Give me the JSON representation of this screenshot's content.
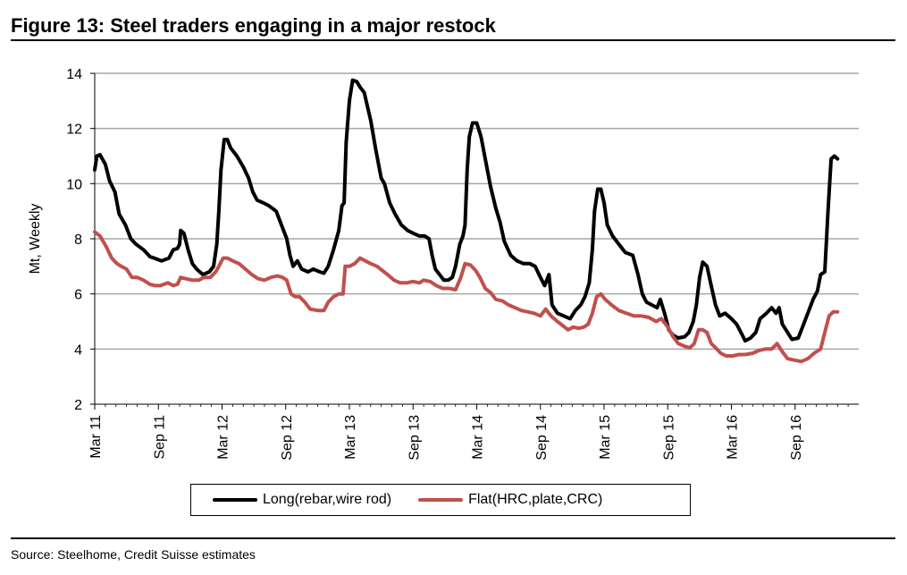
{
  "figure": {
    "title": "Figure 13: Steel traders engaging in a major restock",
    "source": "Source: Steelhome, Credit Suisse estimates"
  },
  "chart_data": {
    "type": "line",
    "title": "Figure 13: Steel traders engaging in a major restock",
    "xlabel": "",
    "ylabel": "Mt, Weekly",
    "ylim": [
      2,
      14
    ],
    "yticks": [
      2,
      4,
      6,
      8,
      10,
      12,
      14
    ],
    "grid": true,
    "legend_position": "bottom",
    "x_tick_labels": [
      "Mar 11",
      "Sep 11",
      "Mar 12",
      "Sep 12",
      "Mar 13",
      "Sep 13",
      "Mar 14",
      "Sep 14",
      "Mar 15",
      "Sep 15",
      "Mar 16",
      "Sep 16"
    ],
    "x_unit": "months since Mar 11",
    "x_range": [
      0,
      72
    ],
    "series": [
      {
        "name": "Long(rebar,wire rod)",
        "color": "#000000",
        "points": [
          [
            0,
            10.5
          ],
          [
            0.2,
            11.0
          ],
          [
            0.5,
            11.05
          ],
          [
            1,
            10.7
          ],
          [
            1.4,
            10.1
          ],
          [
            1.9,
            9.7
          ],
          [
            2.3,
            8.9
          ],
          [
            2.9,
            8.5
          ],
          [
            3.4,
            8.0
          ],
          [
            3.9,
            7.8
          ],
          [
            4.6,
            7.6
          ],
          [
            5.2,
            7.35
          ],
          [
            5.6,
            7.3
          ],
          [
            6.3,
            7.2
          ],
          [
            7.0,
            7.3
          ],
          [
            7.4,
            7.6
          ],
          [
            7.8,
            7.65
          ],
          [
            8.0,
            7.8
          ],
          [
            8.1,
            8.3
          ],
          [
            8.4,
            8.2
          ],
          [
            8.8,
            7.6
          ],
          [
            9.2,
            7.1
          ],
          [
            9.6,
            6.9
          ],
          [
            10.2,
            6.7
          ],
          [
            10.8,
            6.8
          ],
          [
            11.2,
            7.0
          ],
          [
            11.5,
            7.8
          ],
          [
            11.7,
            9.0
          ],
          [
            11.9,
            10.5
          ],
          [
            12.2,
            11.6
          ],
          [
            12.5,
            11.6
          ],
          [
            12.8,
            11.3
          ],
          [
            13.4,
            11.0
          ],
          [
            14.0,
            10.6
          ],
          [
            14.5,
            10.2
          ],
          [
            14.9,
            9.7
          ],
          [
            15.3,
            9.4
          ],
          [
            15.9,
            9.3
          ],
          [
            16.4,
            9.2
          ],
          [
            17.1,
            9.0
          ],
          [
            17.6,
            8.5
          ],
          [
            18.1,
            8.0
          ],
          [
            18.4,
            7.4
          ],
          [
            18.7,
            7.0
          ],
          [
            19.1,
            7.2
          ],
          [
            19.5,
            6.9
          ],
          [
            20.1,
            6.8
          ],
          [
            20.6,
            6.9
          ],
          [
            21.2,
            6.8
          ],
          [
            21.6,
            6.75
          ],
          [
            22.0,
            7.0
          ],
          [
            22.5,
            7.6
          ],
          [
            23.0,
            8.3
          ],
          [
            23.3,
            9.2
          ],
          [
            23.5,
            9.3
          ],
          [
            23.7,
            11.5
          ],
          [
            24.0,
            13.0
          ],
          [
            24.3,
            13.75
          ],
          [
            24.7,
            13.7
          ],
          [
            25.0,
            13.5
          ],
          [
            25.4,
            13.3
          ],
          [
            26.0,
            12.3
          ],
          [
            26.5,
            11.2
          ],
          [
            27.0,
            10.2
          ],
          [
            27.3,
            10.0
          ],
          [
            27.8,
            9.3
          ],
          [
            28.3,
            8.9
          ],
          [
            28.9,
            8.5
          ],
          [
            29.5,
            8.3
          ],
          [
            30.0,
            8.2
          ],
          [
            30.6,
            8.1
          ],
          [
            31.1,
            8.1
          ],
          [
            31.5,
            8.0
          ],
          [
            31.8,
            7.4
          ],
          [
            32.1,
            6.9
          ],
          [
            32.5,
            6.7
          ],
          [
            32.9,
            6.5
          ],
          [
            33.3,
            6.5
          ],
          [
            33.7,
            6.6
          ],
          [
            34.0,
            7.0
          ],
          [
            34.4,
            7.8
          ],
          [
            34.7,
            8.1
          ],
          [
            34.9,
            8.5
          ],
          [
            35.1,
            10.5
          ],
          [
            35.3,
            11.7
          ],
          [
            35.6,
            12.2
          ],
          [
            36.0,
            12.2
          ],
          [
            36.4,
            11.7
          ],
          [
            36.9,
            10.7
          ],
          [
            37.3,
            9.9
          ],
          [
            37.8,
            9.1
          ],
          [
            38.2,
            8.6
          ],
          [
            38.6,
            7.9
          ],
          [
            39.2,
            7.4
          ],
          [
            39.8,
            7.2
          ],
          [
            40.4,
            7.1
          ],
          [
            41.0,
            7.1
          ],
          [
            41.5,
            7.0
          ],
          [
            42.0,
            6.6
          ],
          [
            42.4,
            6.3
          ],
          [
            42.8,
            6.7
          ],
          [
            43.1,
            5.6
          ],
          [
            43.6,
            5.3
          ],
          [
            44.2,
            5.2
          ],
          [
            44.8,
            5.1
          ],
          [
            45.3,
            5.4
          ],
          [
            45.8,
            5.6
          ],
          [
            46.2,
            5.9
          ],
          [
            46.6,
            6.4
          ],
          [
            46.9,
            7.6
          ],
          [
            47.1,
            9.0
          ],
          [
            47.4,
            9.8
          ],
          [
            47.7,
            9.8
          ],
          [
            48.0,
            9.3
          ],
          [
            48.3,
            8.5
          ],
          [
            48.8,
            8.1
          ],
          [
            49.4,
            7.8
          ],
          [
            50.0,
            7.5
          ],
          [
            50.7,
            7.4
          ],
          [
            51.2,
            6.7
          ],
          [
            51.6,
            6.0
          ],
          [
            52.0,
            5.7
          ],
          [
            52.5,
            5.6
          ],
          [
            53.0,
            5.5
          ],
          [
            53.3,
            5.8
          ],
          [
            53.7,
            5.3
          ],
          [
            54.1,
            4.7
          ],
          [
            54.5,
            4.5
          ],
          [
            55.0,
            4.4
          ],
          [
            55.6,
            4.45
          ],
          [
            56.0,
            4.6
          ],
          [
            56.4,
            5.0
          ],
          [
            56.7,
            5.6
          ],
          [
            57.0,
            6.6
          ],
          [
            57.3,
            7.15
          ],
          [
            57.7,
            7.0
          ],
          [
            58.1,
            6.3
          ],
          [
            58.5,
            5.6
          ],
          [
            58.9,
            5.2
          ],
          [
            59.4,
            5.3
          ],
          [
            60.0,
            5.1
          ],
          [
            60.5,
            4.9
          ],
          [
            60.9,
            4.6
          ],
          [
            61.3,
            4.3
          ],
          [
            61.8,
            4.4
          ],
          [
            62.3,
            4.6
          ],
          [
            62.7,
            5.1
          ],
          [
            63.3,
            5.3
          ],
          [
            63.8,
            5.5
          ],
          [
            64.2,
            5.3
          ],
          [
            64.5,
            5.5
          ],
          [
            64.8,
            4.9
          ],
          [
            65.3,
            4.6
          ],
          [
            65.7,
            4.35
          ],
          [
            66.3,
            4.4
          ],
          [
            66.7,
            4.8
          ],
          [
            67.2,
            5.3
          ],
          [
            67.7,
            5.8
          ],
          [
            68.1,
            6.1
          ],
          [
            68.4,
            6.7
          ],
          [
            68.8,
            6.8
          ],
          [
            69.1,
            9.0
          ],
          [
            69.4,
            10.9
          ],
          [
            69.7,
            11.0
          ],
          [
            70.0,
            10.9
          ]
        ]
      },
      {
        "name": "Flat(HRC,plate,CRC)",
        "color": "#c0504d",
        "points": [
          [
            0,
            8.25
          ],
          [
            0.5,
            8.1
          ],
          [
            1.1,
            7.7
          ],
          [
            1.6,
            7.3
          ],
          [
            2.1,
            7.1
          ],
          [
            2.5,
            7.0
          ],
          [
            3.0,
            6.9
          ],
          [
            3.5,
            6.6
          ],
          [
            4.0,
            6.6
          ],
          [
            4.6,
            6.5
          ],
          [
            5.2,
            6.35
          ],
          [
            5.7,
            6.3
          ],
          [
            6.2,
            6.3
          ],
          [
            6.9,
            6.4
          ],
          [
            7.4,
            6.3
          ],
          [
            7.8,
            6.35
          ],
          [
            8.1,
            6.6
          ],
          [
            8.6,
            6.55
          ],
          [
            9.2,
            6.5
          ],
          [
            9.8,
            6.5
          ],
          [
            10.3,
            6.6
          ],
          [
            10.9,
            6.6
          ],
          [
            11.4,
            6.8
          ],
          [
            11.7,
            7.0
          ],
          [
            12.1,
            7.3
          ],
          [
            12.5,
            7.3
          ],
          [
            13.0,
            7.2
          ],
          [
            13.6,
            7.1
          ],
          [
            14.2,
            6.9
          ],
          [
            14.8,
            6.7
          ],
          [
            15.4,
            6.55
          ],
          [
            16.0,
            6.5
          ],
          [
            16.6,
            6.6
          ],
          [
            17.2,
            6.65
          ],
          [
            17.7,
            6.6
          ],
          [
            18.1,
            6.5
          ],
          [
            18.5,
            6.0
          ],
          [
            18.9,
            5.9
          ],
          [
            19.3,
            5.9
          ],
          [
            19.8,
            5.7
          ],
          [
            20.3,
            5.45
          ],
          [
            21.0,
            5.4
          ],
          [
            21.6,
            5.4
          ],
          [
            22.0,
            5.7
          ],
          [
            22.5,
            5.9
          ],
          [
            23.0,
            6.0
          ],
          [
            23.4,
            6.0
          ],
          [
            23.6,
            7.0
          ],
          [
            24.0,
            7.0
          ],
          [
            24.5,
            7.1
          ],
          [
            25.0,
            7.3
          ],
          [
            25.5,
            7.2
          ],
          [
            26.0,
            7.1
          ],
          [
            26.6,
            7.0
          ],
          [
            27.1,
            6.85
          ],
          [
            27.6,
            6.7
          ],
          [
            28.2,
            6.5
          ],
          [
            28.8,
            6.4
          ],
          [
            29.4,
            6.4
          ],
          [
            30.0,
            6.45
          ],
          [
            30.6,
            6.4
          ],
          [
            31.0,
            6.5
          ],
          [
            31.6,
            6.45
          ],
          [
            32.2,
            6.3
          ],
          [
            32.8,
            6.2
          ],
          [
            33.4,
            6.2
          ],
          [
            34.0,
            6.15
          ],
          [
            34.5,
            6.6
          ],
          [
            34.9,
            7.1
          ],
          [
            35.4,
            7.05
          ],
          [
            35.9,
            6.85
          ],
          [
            36.3,
            6.6
          ],
          [
            36.8,
            6.2
          ],
          [
            37.3,
            6.05
          ],
          [
            37.8,
            5.8
          ],
          [
            38.4,
            5.75
          ],
          [
            39.0,
            5.6
          ],
          [
            39.6,
            5.5
          ],
          [
            40.2,
            5.4
          ],
          [
            40.8,
            5.35
          ],
          [
            41.4,
            5.3
          ],
          [
            42.0,
            5.2
          ],
          [
            42.5,
            5.45
          ],
          [
            43.0,
            5.2
          ],
          [
            43.6,
            5.0
          ],
          [
            44.1,
            4.85
          ],
          [
            44.6,
            4.7
          ],
          [
            45.1,
            4.8
          ],
          [
            45.6,
            4.75
          ],
          [
            46.1,
            4.8
          ],
          [
            46.5,
            4.9
          ],
          [
            46.9,
            5.3
          ],
          [
            47.3,
            5.9
          ],
          [
            47.7,
            6.0
          ],
          [
            48.1,
            5.8
          ],
          [
            48.7,
            5.6
          ],
          [
            49.4,
            5.4
          ],
          [
            50.1,
            5.3
          ],
          [
            50.8,
            5.2
          ],
          [
            51.5,
            5.2
          ],
          [
            52.2,
            5.15
          ],
          [
            52.9,
            5.0
          ],
          [
            53.4,
            5.1
          ],
          [
            54.0,
            4.8
          ],
          [
            54.5,
            4.45
          ],
          [
            55.0,
            4.2
          ],
          [
            55.6,
            4.1
          ],
          [
            56.1,
            4.05
          ],
          [
            56.5,
            4.2
          ],
          [
            56.9,
            4.7
          ],
          [
            57.3,
            4.7
          ],
          [
            57.7,
            4.6
          ],
          [
            58.1,
            4.2
          ],
          [
            58.5,
            4.05
          ],
          [
            59.0,
            3.85
          ],
          [
            59.5,
            3.75
          ],
          [
            60.1,
            3.75
          ],
          [
            60.7,
            3.8
          ],
          [
            61.3,
            3.8
          ],
          [
            62.0,
            3.85
          ],
          [
            62.6,
            3.95
          ],
          [
            63.2,
            4.0
          ],
          [
            63.8,
            4.0
          ],
          [
            64.3,
            4.2
          ],
          [
            64.8,
            3.9
          ],
          [
            65.3,
            3.65
          ],
          [
            65.9,
            3.6
          ],
          [
            66.6,
            3.55
          ],
          [
            67.2,
            3.65
          ],
          [
            67.8,
            3.85
          ],
          [
            68.4,
            4.0
          ],
          [
            68.8,
            4.6
          ],
          [
            69.2,
            5.2
          ],
          [
            69.6,
            5.35
          ],
          [
            70.0,
            5.35
          ]
        ]
      }
    ]
  }
}
